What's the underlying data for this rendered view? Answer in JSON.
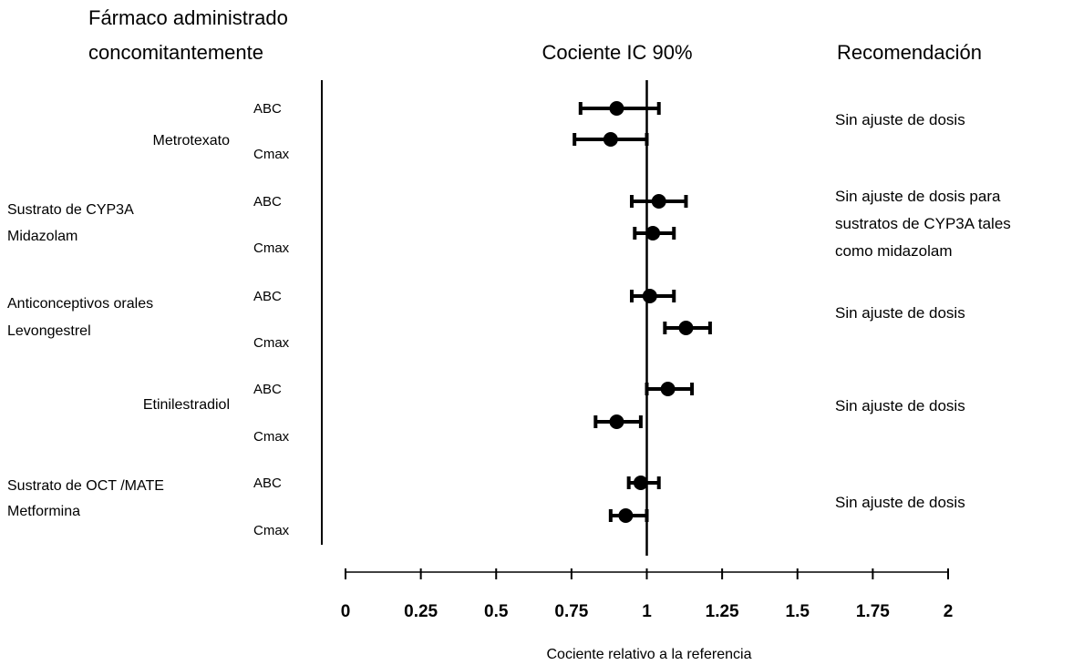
{
  "chart_data": {
    "type": "forest",
    "title": "Cociente IC 90%",
    "xlabel": "Cociente relativo a la referencia",
    "xlim": [
      0,
      2
    ],
    "reference_line": 1,
    "xticks": [
      "0",
      "0.25",
      "0.5",
      "0.75",
      "1",
      "1.25",
      "1.5",
      "1.75",
      "2"
    ],
    "xtick_values": [
      0,
      0.25,
      0.5,
      0.75,
      1,
      1.25,
      1.5,
      1.75,
      2
    ],
    "headers": {
      "drug": [
        "Fármaco administrado",
        "concomitantemente"
      ],
      "recommendation": "Recomendación"
    },
    "groups": [
      {
        "drug": [
          "Metrotexato"
        ],
        "recommendation": [
          "Sin ajuste de dosis"
        ],
        "rows": [
          {
            "metric": "ABC",
            "estimate": 0.9,
            "lower": 0.78,
            "upper": 1.04
          },
          {
            "metric": "Cmax",
            "estimate": 0.88,
            "lower": 0.76,
            "upper": 1.0
          }
        ]
      },
      {
        "drug": [
          "Sustrato de CYP3A",
          "Midazolam"
        ],
        "recommendation": [
          "Sin ajuste de dosis para",
          "sustratos de CYP3A tales",
          "como midazolam"
        ],
        "rows": [
          {
            "metric": "ABC",
            "estimate": 1.04,
            "lower": 0.95,
            "upper": 1.13
          },
          {
            "metric": "Cmax",
            "estimate": 1.02,
            "lower": 0.96,
            "upper": 1.09
          }
        ]
      },
      {
        "drug": [
          "Anticonceptivos orales",
          "Levongestrel"
        ],
        "recommendation": [
          "Sin ajuste de dosis"
        ],
        "rows": [
          {
            "metric": "ABC",
            "estimate": 1.01,
            "lower": 0.95,
            "upper": 1.09
          },
          {
            "metric": "Cmax",
            "estimate": 1.13,
            "lower": 1.06,
            "upper": 1.21
          }
        ]
      },
      {
        "drug": [
          "Etinilestradiol"
        ],
        "recommendation": [
          "Sin ajuste de dosis"
        ],
        "rows": [
          {
            "metric": "ABC",
            "estimate": 1.07,
            "lower": 1.0,
            "upper": 1.15
          },
          {
            "metric": "Cmax",
            "estimate": 0.9,
            "lower": 0.83,
            "upper": 0.98
          }
        ]
      },
      {
        "drug": [
          "Sustrato de OCT /MATE",
          "Metformina"
        ],
        "recommendation": [
          "Sin ajuste de dosis"
        ],
        "rows": [
          {
            "metric": "ABC",
            "estimate": 0.98,
            "lower": 0.94,
            "upper": 1.04
          },
          {
            "metric": "Cmax",
            "estimate": 0.93,
            "lower": 0.88,
            "upper": 1.0
          }
        ]
      }
    ]
  }
}
